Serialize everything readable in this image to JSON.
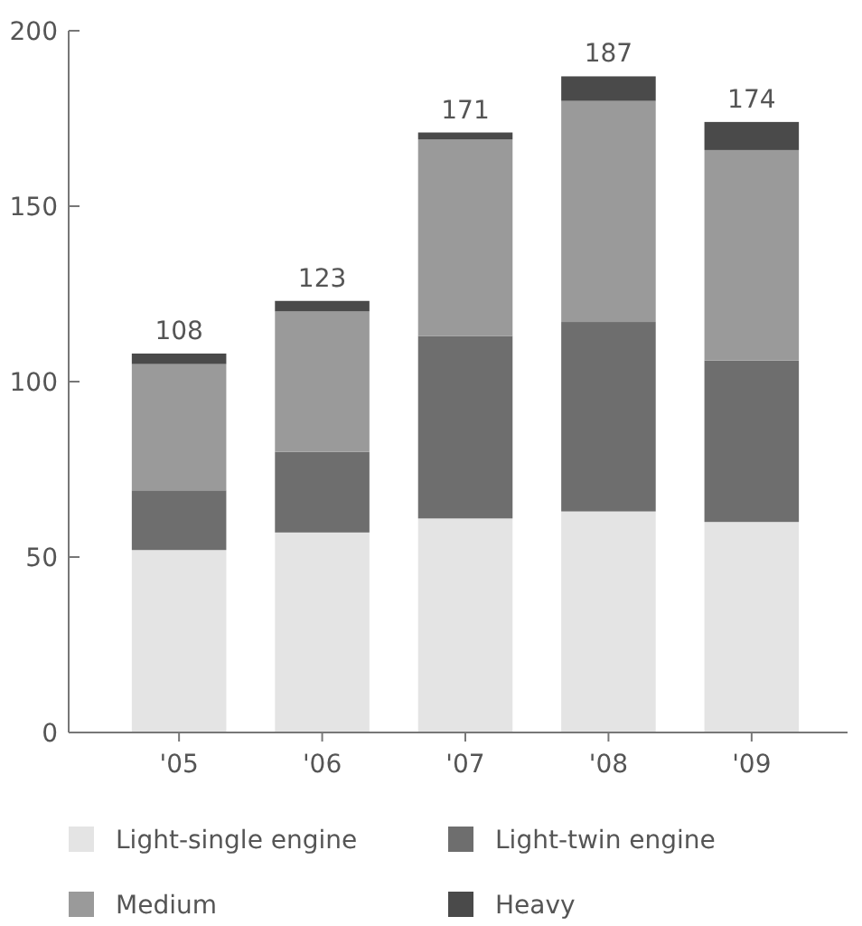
{
  "chart_data": {
    "type": "bar",
    "stacked": true,
    "categories": [
      "'05",
      "'06",
      "'07",
      "'08",
      "'09"
    ],
    "series": [
      {
        "name": "Light-single engine",
        "color": "#e4e4e4",
        "values": [
          52,
          57,
          61,
          63,
          60
        ]
      },
      {
        "name": "Light-twin engine",
        "color": "#6e6e6e",
        "values": [
          17,
          23,
          52,
          54,
          46
        ]
      },
      {
        "name": "Medium",
        "color": "#9a9a9a",
        "values": [
          36,
          40,
          56,
          63,
          60
        ]
      },
      {
        "name": "Heavy",
        "color": "#4a4a4a",
        "values": [
          3,
          3,
          2,
          7,
          8
        ]
      }
    ],
    "totals": [
      "108",
      "123",
      "171",
      "187",
      "174"
    ],
    "ylim": [
      0,
      200
    ],
    "yticks": [
      0,
      50,
      100,
      150,
      200
    ],
    "legend": "bottom"
  }
}
